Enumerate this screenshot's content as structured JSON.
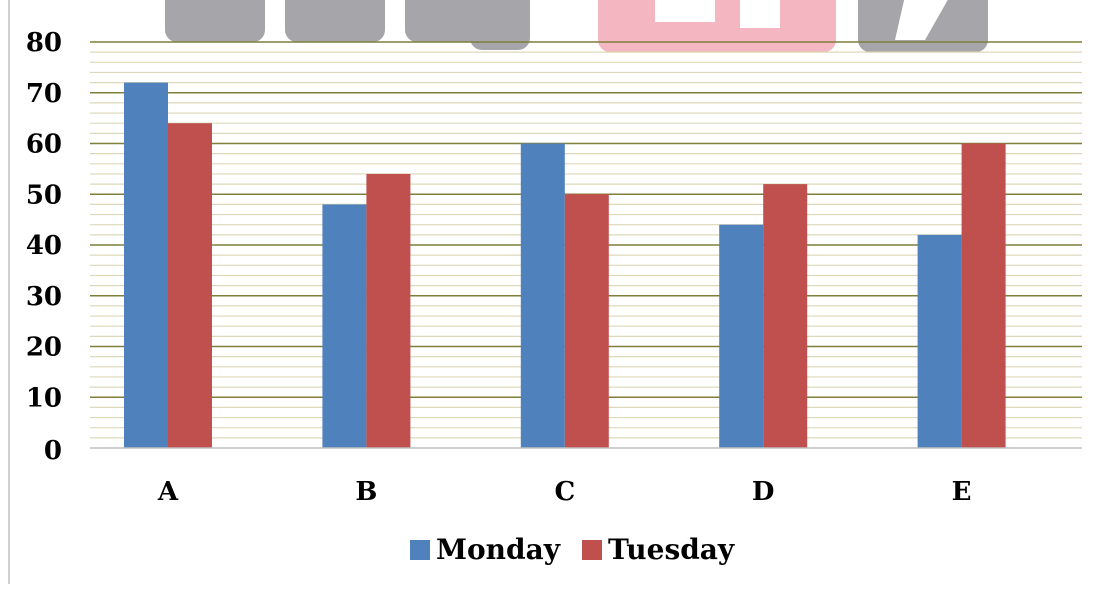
{
  "chart_data": {
    "type": "bar",
    "categories": [
      "A",
      "B",
      "C",
      "D",
      "E"
    ],
    "series": [
      {
        "name": "Monday",
        "values": [
          72,
          48,
          60,
          44,
          42
        ]
      },
      {
        "name": "Tuesday",
        "values": [
          64,
          54,
          50,
          52,
          60
        ]
      }
    ],
    "ylim": [
      0,
      80
    ],
    "yticks": [
      0,
      10,
      20,
      30,
      40,
      50,
      60,
      70,
      80
    ],
    "grid": true,
    "legend_position": "bottom",
    "colors": {
      "series": [
        "#4F81BD",
        "#C0504D"
      ],
      "major_grid": "#7F7F3A",
      "minor_grid": "#DDD8B8",
      "watermark_gray": "#A6A6AA",
      "watermark_pink": "#F4B6C0"
    }
  }
}
